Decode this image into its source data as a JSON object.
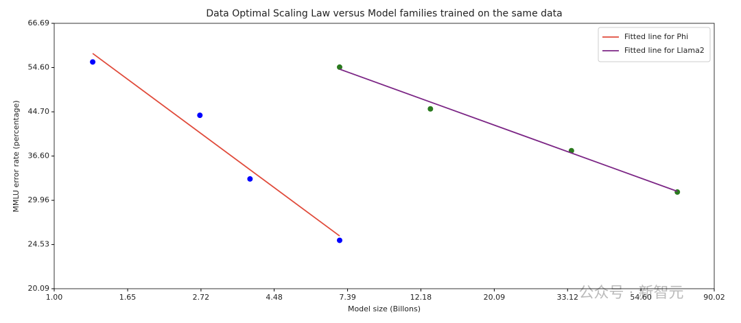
{
  "chart_data": {
    "type": "scatter",
    "title": "Data Optimal Scaling Law versus Model families trained on the same data",
    "x_label": "Model size (Billons)",
    "y_label": "MMLU error rate (percentage)",
    "xscale": "log",
    "yscale": "log",
    "xlim": [
      1.0,
      90.02
    ],
    "ylim": [
      20.09,
      66.69
    ],
    "xticks": [
      {
        "value": 1,
        "label": "1.00"
      },
      1.65,
      2.72,
      4.48,
      7.39,
      12.18,
      20.09,
      33.12,
      {
        "value": 54.6,
        "label": "54.60"
      },
      90.02
    ],
    "yticks": [
      20.09,
      24.53,
      29.96,
      {
        "value": 36.6,
        "label": "36.60"
      },
      {
        "value": 44.7,
        "label": "44.70"
      },
      {
        "value": 54.6,
        "label": "54.60"
      },
      66.69
    ],
    "legend": "upper right",
    "series": [
      {
        "kind": "markers",
        "color": "#0000ff",
        "x": [
          1.3,
          2.7,
          3.8,
          7.0
        ],
        "values": [
          56.0,
          44.0,
          33.0,
          25.0
        ]
      },
      {
        "kind": "line",
        "name": "Fitted line for Phi",
        "color": "#e04a3a",
        "x": [
          1.3,
          7.0
        ],
        "values": [
          58.2,
          25.5
        ]
      },
      {
        "kind": "markers",
        "color": "#2a7a1e",
        "x": [
          7,
          13,
          34,
          70
        ],
        "values": [
          54.7,
          45.3,
          37.5,
          31.1
        ]
      },
      {
        "kind": "line",
        "name": "Fitted line for Llama2",
        "color": "#7b2585",
        "x": [
          7,
          70
        ],
        "values": [
          54.2,
          31.2
        ]
      }
    ],
    "watermark": "公众号 · 新智元"
  }
}
